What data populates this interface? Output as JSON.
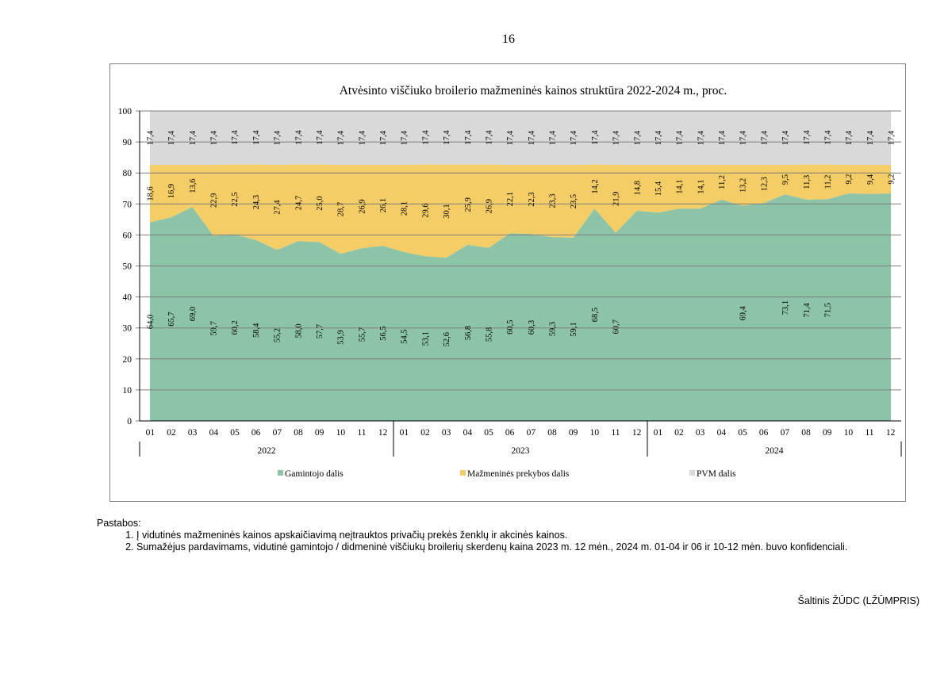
{
  "page_number": "16",
  "chart_data": {
    "type": "area",
    "title": "Atvėsinto viščiuko broilerio mažmeninės kainos struktūra 2022-2024 m., proc.",
    "ylim": [
      0,
      100
    ],
    "yticks": [
      "0",
      "10",
      "20",
      "30",
      "40",
      "50",
      "60",
      "70",
      "80",
      "90",
      "100"
    ],
    "grid": true,
    "legend_position": "bottom",
    "x_months": [
      "01",
      "02",
      "03",
      "04",
      "05",
      "06",
      "07",
      "08",
      "09",
      "10",
      "11",
      "12",
      "01",
      "02",
      "03",
      "04",
      "05",
      "06",
      "07",
      "08",
      "09",
      "10",
      "11",
      "12",
      "01",
      "02",
      "03",
      "04",
      "05",
      "06",
      "07",
      "08",
      "09",
      "10",
      "11",
      "12"
    ],
    "years": [
      "2022",
      "2023",
      "2024"
    ],
    "colors": {
      "producer": "#8dc3a7",
      "retail": "#f5cd67",
      "vat": "#d9d9d9",
      "grid": "#7f7f7f"
    },
    "series": [
      {
        "name": "Gamintojo dalis",
        "values": [
          64.0,
          65.7,
          69.0,
          59.7,
          60.2,
          58.4,
          55.2,
          58.0,
          57.7,
          53.9,
          55.7,
          56.5,
          54.5,
          53.1,
          52.6,
          56.8,
          55.8,
          60.5,
          60.3,
          59.3,
          59.1,
          68.5,
          60.7,
          67.8,
          67.2,
          68.5,
          68.5,
          71.4,
          69.4,
          70.3,
          73.1,
          71.4,
          71.5,
          73.4,
          73.2,
          73.4
        ],
        "labels": [
          "64,0",
          "65,7",
          "69,0",
          "59,7",
          "60,2",
          "58,4",
          "55,2",
          "58,0",
          "57,7",
          "53,9",
          "55,7",
          "56,5",
          "54,5",
          "53,1",
          "52,6",
          "56,8",
          "55,8",
          "60,5",
          "60,3",
          "59,3",
          "59,1",
          "68,5",
          "60,7",
          "",
          "",
          "",
          "",
          "",
          "69,4",
          "",
          "73,1",
          "71,4",
          "71,5",
          "",
          "",
          ""
        ]
      },
      {
        "name": "Mažmeninės prekybos dalis",
        "values": [
          18.6,
          16.9,
          13.6,
          22.9,
          22.5,
          24.3,
          27.4,
          24.7,
          25.0,
          28.7,
          26.9,
          26.1,
          28.1,
          29.6,
          30.1,
          25.9,
          26.9,
          22.1,
          22.3,
          23.3,
          23.5,
          14.2,
          21.9,
          14.8,
          15.4,
          14.1,
          14.1,
          11.2,
          13.2,
          12.3,
          9.5,
          11.3,
          11.2,
          9.2,
          9.4,
          9.2
        ],
        "labels": [
          "18,6",
          "16,9",
          "13,6",
          "22,9",
          "22,5",
          "24,3",
          "27,4",
          "24,7",
          "25,0",
          "28,7",
          "26,9",
          "26,1",
          "28,1",
          "29,6",
          "30,1",
          "25,9",
          "26,9",
          "22,1",
          "22,3",
          "23,3",
          "23,5",
          "14,2",
          "21,9",
          "14,8",
          "15,4",
          "14,1",
          "14,1",
          "11,2",
          "13,2",
          "12,3",
          "9,5",
          "11,3",
          "11,2",
          "9,2",
          "9,4",
          "9,2"
        ]
      },
      {
        "name": "PVM dalis",
        "values": [
          17.4,
          17.4,
          17.4,
          17.4,
          17.4,
          17.4,
          17.4,
          17.4,
          17.4,
          17.4,
          17.4,
          17.4,
          17.4,
          17.4,
          17.4,
          17.4,
          17.4,
          17.4,
          17.4,
          17.4,
          17.4,
          17.4,
          17.4,
          17.4,
          17.4,
          17.4,
          17.4,
          17.4,
          17.4,
          17.4,
          17.4,
          17.4,
          17.4,
          17.4,
          17.4,
          17.4
        ],
        "labels": [
          "17,4",
          "17,4",
          "17,4",
          "17,4",
          "17,4",
          "17,4",
          "17,4",
          "17,4",
          "17,4",
          "17,4",
          "17,4",
          "17,4",
          "17,4",
          "17,4",
          "17,4",
          "17,4",
          "17,4",
          "17,4",
          "17,4",
          "17,4",
          "17,4",
          "17,4",
          "17,4",
          "17,4",
          "17,4",
          "17,4",
          "17,4",
          "17,4",
          "17,4",
          "17,4",
          "17,4",
          "17,4",
          "17,4",
          "17,4",
          "17,4",
          "17,4"
        ]
      }
    ]
  },
  "notes": {
    "heading": "Pastabos:",
    "items": [
      "Į vidutinės mažmeninės kainos apskaičiavimą neįtrauktos privačių prekės ženklų ir akcinės kainos.",
      "Sumažėjus pardavimams, vidutinė gamintojo / didmeninė viščiukų broilerių skerdenų kaina 2023 m. 12 mėn.,  2024 m. 01-04 ir 06 ir 10-12  mėn. buvo konfidenciali."
    ]
  },
  "source": "Šaltinis ŽŪDC (LŽŪMPRIS)"
}
